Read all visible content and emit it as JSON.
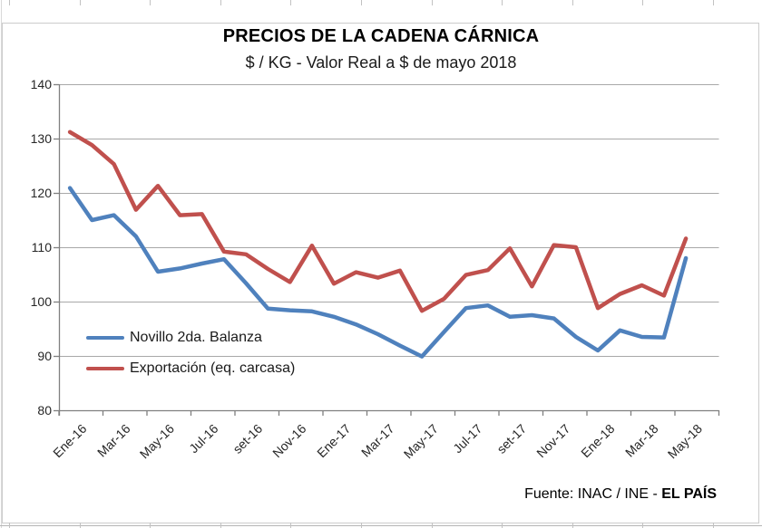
{
  "chart": {
    "title": "PRECIOS DE LA CADENA CÁRNICA",
    "subtitle": "$ / KG - Valor Real a $ de mayo 2018",
    "source_prefix": "Fuente: INAC / INE - ",
    "source_bold": "EL PAÍS"
  },
  "chart_data": {
    "type": "line",
    "title": "PRECIOS DE LA CADENA CÁRNICA",
    "subtitle": "$ / KG - Valor Real a $ de mayo 2018",
    "xlabel": "",
    "ylabel": "",
    "ylim": [
      80,
      140
    ],
    "y_ticks": [
      80,
      90,
      100,
      110,
      120,
      130,
      140
    ],
    "grid": true,
    "legend_position": "inside-left",
    "x": [
      "Ene-16",
      "Feb-16",
      "Mar-16",
      "Abr-16",
      "May-16",
      "Jun-16",
      "Jul-16",
      "Ago-16",
      "set-16",
      "Oct-16",
      "Nov-16",
      "Dic-16",
      "Ene-17",
      "Feb-17",
      "Mar-17",
      "Abr-17",
      "May-17",
      "Jun-17",
      "Jul-17",
      "Ago-17",
      "set-17",
      "Oct-17",
      "Nov-17",
      "Dic-17",
      "Ene-18",
      "Feb-18",
      "Mar-18",
      "Abr-18",
      "May-18"
    ],
    "x_tick_labels": [
      "Ene-16",
      "Mar-16",
      "May-16",
      "Jul-16",
      "set-16",
      "Nov-16",
      "Ene-17",
      "Mar-17",
      "May-17",
      "Jul-17",
      "set-17",
      "Nov-17",
      "Ene-18",
      "Mar-18",
      "May-18"
    ],
    "series": [
      {
        "name": "Novillo 2da. Balanza",
        "color": "#4F81BD",
        "values": [
          120.9,
          115.0,
          115.9,
          112.0,
          105.5,
          106.1,
          107.0,
          107.8,
          103.4,
          98.7,
          98.4,
          98.2,
          97.2,
          95.8,
          94.0,
          91.9,
          89.9,
          94.4,
          98.8,
          99.3,
          97.2,
          97.5,
          96.9,
          93.5,
          91.0,
          94.7,
          93.5,
          93.4,
          108.0
        ]
      },
      {
        "name": "Exportación (eq. carcasa)",
        "color": "#C0504D",
        "values": [
          131.2,
          128.8,
          125.3,
          116.9,
          121.3,
          115.9,
          116.1,
          109.2,
          108.7,
          106.0,
          103.6,
          110.3,
          103.3,
          105.4,
          104.4,
          105.7,
          98.3,
          100.5,
          104.9,
          105.8,
          109.8,
          102.8,
          110.4,
          110.0,
          98.8,
          101.4,
          103.0,
          101.1,
          111.6
        ]
      }
    ],
    "axis_color": "#808080",
    "gridline_color": "#a8a8a8"
  }
}
